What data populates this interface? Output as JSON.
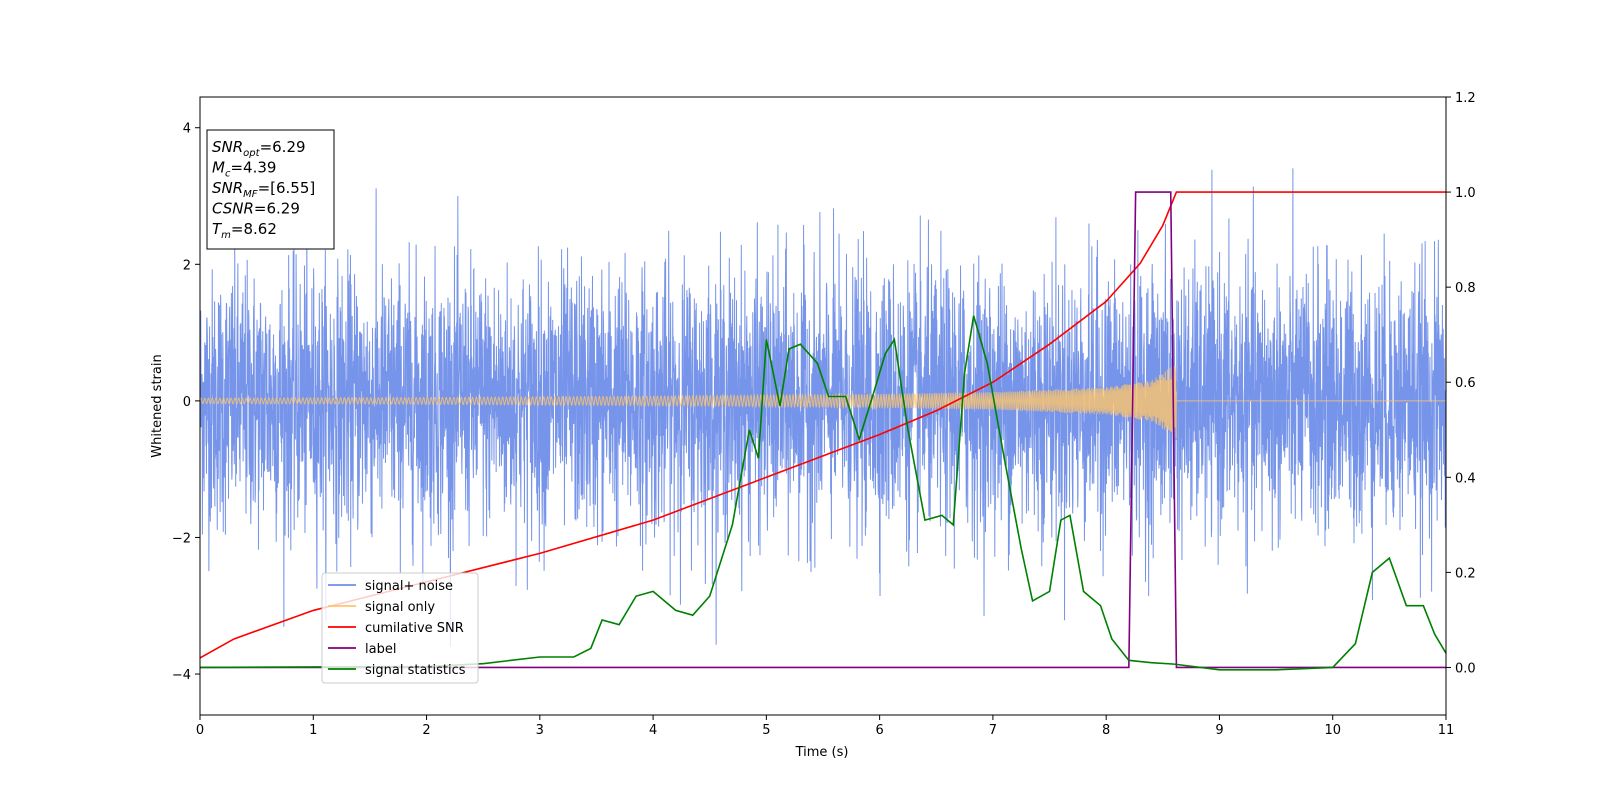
{
  "chart_data": {
    "type": "line",
    "xlabel": "Time (s)",
    "ylabel": "Whitened strain",
    "xlim": [
      0,
      11
    ],
    "ylim": [
      -4.6,
      4.45
    ],
    "y2lim": [
      -0.1,
      1.2
    ],
    "x_ticks": [
      0,
      1,
      2,
      3,
      4,
      5,
      6,
      7,
      8,
      9,
      10,
      11
    ],
    "y_ticks": [
      -4,
      -2,
      0,
      2,
      4
    ],
    "y2_ticks": [
      "0.0",
      "0.2",
      "0.4",
      "0.6",
      "0.8",
      "1.0",
      "1.2"
    ],
    "grid": false,
    "legend_position": "lower-left",
    "series": [
      {
        "name": "signal+ noise",
        "axis": "left",
        "color": "#6f8ee8",
        "kind": "noise_band",
        "envelope": 2.2,
        "spike_max": 4.05
      },
      {
        "name": "signal only",
        "axis": "left",
        "color": "#ffc46b",
        "kind": "chirp",
        "points": [
          [
            0,
            0.04
          ],
          [
            2,
            0.05
          ],
          [
            4,
            0.07
          ],
          [
            6,
            0.1
          ],
          [
            7,
            0.13
          ],
          [
            8,
            0.2
          ],
          [
            8.4,
            0.3
          ],
          [
            8.62,
            0.55
          ]
        ]
      },
      {
        "name": "cumilative SNR",
        "axis": "right",
        "color": "#ff0000",
        "points": [
          [
            0,
            0.02
          ],
          [
            0.3,
            0.06
          ],
          [
            1,
            0.12
          ],
          [
            2,
            0.18
          ],
          [
            3,
            0.24
          ],
          [
            4,
            0.31
          ],
          [
            5,
            0.4
          ],
          [
            6,
            0.49
          ],
          [
            6.5,
            0.54
          ],
          [
            7,
            0.6
          ],
          [
            7.5,
            0.68
          ],
          [
            8,
            0.77
          ],
          [
            8.3,
            0.85
          ],
          [
            8.5,
            0.93
          ],
          [
            8.62,
            1.0
          ],
          [
            11,
            1.0
          ]
        ]
      },
      {
        "name": "label",
        "axis": "right",
        "color": "#800080",
        "points": [
          [
            0,
            0.0
          ],
          [
            8.2,
            0.0
          ],
          [
            8.26,
            1.0
          ],
          [
            8.57,
            1.0
          ],
          [
            8.62,
            0.0
          ],
          [
            11,
            0.0
          ]
        ]
      },
      {
        "name": "signal statistics",
        "axis": "right",
        "color": "#008000",
        "points": [
          [
            0,
            0.0
          ],
          [
            2,
            0.002
          ],
          [
            2.5,
            0.008
          ],
          [
            3,
            0.022
          ],
          [
            3.3,
            0.022
          ],
          [
            3.45,
            0.04
          ],
          [
            3.55,
            0.1
          ],
          [
            3.7,
            0.09
          ],
          [
            3.85,
            0.15
          ],
          [
            4.0,
            0.16
          ],
          [
            4.2,
            0.12
          ],
          [
            4.35,
            0.11
          ],
          [
            4.5,
            0.15
          ],
          [
            4.7,
            0.3
          ],
          [
            4.85,
            0.5
          ],
          [
            4.93,
            0.44
          ],
          [
            5.0,
            0.69
          ],
          [
            5.12,
            0.55
          ],
          [
            5.2,
            0.67
          ],
          [
            5.3,
            0.68
          ],
          [
            5.45,
            0.64
          ],
          [
            5.55,
            0.57
          ],
          [
            5.7,
            0.57
          ],
          [
            5.82,
            0.48
          ],
          [
            5.95,
            0.58
          ],
          [
            6.05,
            0.66
          ],
          [
            6.13,
            0.69
          ],
          [
            6.25,
            0.5
          ],
          [
            6.4,
            0.31
          ],
          [
            6.55,
            0.32
          ],
          [
            6.65,
            0.3
          ],
          [
            6.75,
            0.62
          ],
          [
            6.83,
            0.74
          ],
          [
            6.95,
            0.64
          ],
          [
            7.1,
            0.44
          ],
          [
            7.25,
            0.25
          ],
          [
            7.35,
            0.14
          ],
          [
            7.5,
            0.16
          ],
          [
            7.6,
            0.31
          ],
          [
            7.68,
            0.32
          ],
          [
            7.8,
            0.16
          ],
          [
            7.95,
            0.13
          ],
          [
            8.05,
            0.06
          ],
          [
            8.2,
            0.015
          ],
          [
            8.4,
            0.01
          ],
          [
            8.6,
            0.007
          ],
          [
            9.0,
            -0.005
          ],
          [
            9.5,
            -0.005
          ],
          [
            10.0,
            0.0
          ],
          [
            10.2,
            0.05
          ],
          [
            10.35,
            0.2
          ],
          [
            10.5,
            0.23
          ],
          [
            10.65,
            0.13
          ],
          [
            10.8,
            0.13
          ],
          [
            10.9,
            0.07
          ],
          [
            11.0,
            0.03
          ]
        ]
      }
    ],
    "info_box": [
      {
        "main": "SNR",
        "sub": "opt",
        "value": "=6.29"
      },
      {
        "main": "M",
        "sub": "c",
        "value": "=4.39"
      },
      {
        "main": "SNR",
        "sub": "MF",
        "value": "=[6.55]"
      },
      {
        "main": "CSNR",
        "sub": "",
        "value": "=6.29"
      },
      {
        "main": "T",
        "sub": "m",
        "value": "=8.62"
      }
    ]
  }
}
